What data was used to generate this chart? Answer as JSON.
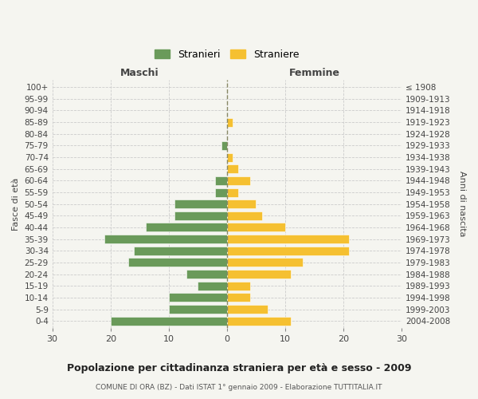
{
  "age_groups": [
    "0-4",
    "5-9",
    "10-14",
    "15-19",
    "20-24",
    "25-29",
    "30-34",
    "35-39",
    "40-44",
    "45-49",
    "50-54",
    "55-59",
    "60-64",
    "65-69",
    "70-74",
    "75-79",
    "80-84",
    "85-89",
    "90-94",
    "95-99",
    "100+"
  ],
  "birth_years": [
    "2004-2008",
    "1999-2003",
    "1994-1998",
    "1989-1993",
    "1984-1988",
    "1979-1983",
    "1974-1978",
    "1969-1973",
    "1964-1968",
    "1959-1963",
    "1954-1958",
    "1949-1953",
    "1944-1948",
    "1939-1943",
    "1934-1938",
    "1929-1933",
    "1924-1928",
    "1919-1923",
    "1914-1918",
    "1909-1913",
    "≤ 1908"
  ],
  "maschi": [
    20,
    10,
    10,
    5,
    7,
    17,
    16,
    21,
    14,
    9,
    9,
    2,
    2,
    0,
    0,
    1,
    0,
    0,
    0,
    0,
    0
  ],
  "femmine": [
    11,
    7,
    4,
    4,
    11,
    13,
    21,
    21,
    10,
    6,
    5,
    2,
    4,
    2,
    1,
    0,
    0,
    1,
    0,
    0,
    0
  ],
  "color_maschi": "#6a9a5a",
  "color_femmine": "#f5c031",
  "title": "Popolazione per cittadinanza straniera per età e sesso - 2009",
  "subtitle": "COMUNE DI ORA (BZ) - Dati ISTAT 1° gennaio 2009 - Elaborazione TUTTITALIA.IT",
  "label_maschi": "Maschi",
  "label_femmine": "Femmine",
  "ylabel_left": "Fasce di età",
  "ylabel_right": "Anni di nascita",
  "xlim": 30,
  "legend_stranieri": "Stranieri",
  "legend_straniere": "Straniere",
  "background_color": "#f5f5f0",
  "grid_color": "#cccccc"
}
